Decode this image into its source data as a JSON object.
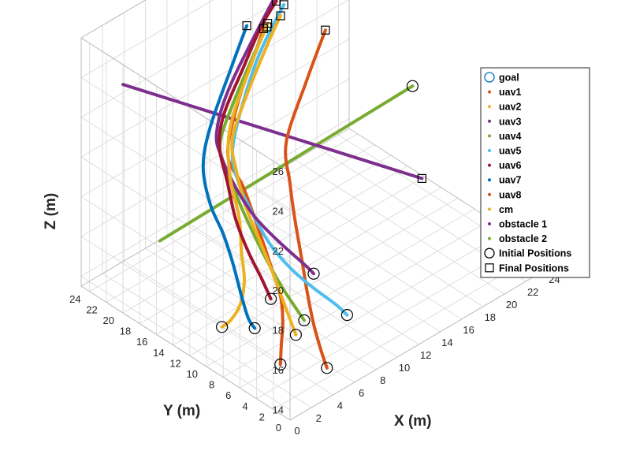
{
  "chart_data": {
    "type": "line",
    "projection": "3d",
    "xlabel": "X (m)",
    "ylabel": "Y (m)",
    "zlabel": "Z (m)",
    "xlim": [
      0,
      25
    ],
    "ylim": [
      0,
      25
    ],
    "zlim": [
      13.5,
      26
    ],
    "xticks": [
      "0",
      "2",
      "4",
      "6",
      "8",
      "10",
      "12",
      "14",
      "16",
      "18",
      "20",
      "22",
      "24"
    ],
    "yticks": [
      "0",
      "2",
      "4",
      "6",
      "8",
      "10",
      "12",
      "14",
      "16",
      "18",
      "20",
      "22",
      "24"
    ],
    "zticks": [
      "14",
      "16",
      "18",
      "20",
      "22",
      "24",
      "26"
    ],
    "grid": true,
    "legend_position": "top-right",
    "legend": [
      {
        "label": "goal",
        "marker": "circle",
        "color": "#0072BD"
      },
      {
        "label": "uav1",
        "marker": "dot",
        "color": "#D95319"
      },
      {
        "label": "uav2",
        "marker": "dot",
        "color": "#EDB120"
      },
      {
        "label": "uav3",
        "marker": "dot",
        "color": "#7E2F8E"
      },
      {
        "label": "uav4",
        "marker": "dot",
        "color": "#77AC30"
      },
      {
        "label": "uav5",
        "marker": "dot",
        "color": "#4DBEEE"
      },
      {
        "label": "uav6",
        "marker": "dot",
        "color": "#A2142F"
      },
      {
        "label": "uav7",
        "marker": "dot",
        "color": "#0072BD"
      },
      {
        "label": "uav8",
        "marker": "dot",
        "color": "#D95319"
      },
      {
        "label": "cm",
        "marker": "dot",
        "color": "#EDB120"
      },
      {
        "label": "obstacle 1",
        "marker": "dot",
        "color": "#7E2F8E"
      },
      {
        "label": "obstacle 2",
        "marker": "dot",
        "color": "#77AC30"
      },
      {
        "label": "Initial Positions",
        "marker": "circle",
        "color": "#000000"
      },
      {
        "label": "Final Positions",
        "marker": "square",
        "color": "#000000"
      }
    ],
    "series": [
      {
        "name": "uav1",
        "color": "#D95319",
        "points": [
          [
            3.0,
            5.0,
            14.0
          ],
          [
            3.4,
            5.4,
            14.8
          ],
          [
            4.0,
            6.0,
            15.5
          ],
          [
            4.6,
            7.0,
            16.3
          ],
          [
            4.8,
            8.2,
            17.2
          ],
          [
            5.0,
            10.0,
            18.6
          ],
          [
            5.0,
            12.0,
            20.4
          ],
          [
            5.5,
            14.5,
            21.2
          ],
          [
            9.0,
            17.8,
            21.8
          ],
          [
            13.0,
            21.0,
            22.0
          ],
          [
            15.3,
            22.8,
            22.2
          ]
        ]
      },
      {
        "name": "uav2",
        "color": "#EDB120",
        "points": [
          [
            3.0,
            12.0,
            14.0
          ],
          [
            3.2,
            11.2,
            14.5
          ],
          [
            3.6,
            10.6,
            15.3
          ],
          [
            4.0,
            10.6,
            16.4
          ],
          [
            4.2,
            11.2,
            17.6
          ],
          [
            4.6,
            12.0,
            19.0
          ],
          [
            4.8,
            13.4,
            20.8
          ],
          [
            6.5,
            15.5,
            22.0
          ],
          [
            11.5,
            19.5,
            22.4
          ],
          [
            15.3,
            22.3,
            22.6
          ]
        ]
      },
      {
        "name": "uav3",
        "color": "#7E2F8E",
        "points": [
          [
            10.0,
            10.0,
            15.0
          ],
          [
            9.5,
            10.5,
            15.5
          ],
          [
            8.0,
            11.5,
            16.8
          ],
          [
            6.6,
            12.6,
            18.2
          ],
          [
            5.6,
            13.6,
            19.7
          ],
          [
            5.0,
            14.6,
            21.2
          ],
          [
            5.0,
            15.2,
            22.3
          ],
          [
            8.0,
            17.5,
            23.0
          ],
          [
            16.0,
            23.0,
            23.0
          ],
          [
            19.0,
            24.8,
            23.0
          ]
        ]
      },
      {
        "name": "uav4",
        "color": "#77AC30",
        "points": [
          [
            6.0,
            6.0,
            15.0
          ],
          [
            5.8,
            6.8,
            15.5
          ],
          [
            5.4,
            8.0,
            16.4
          ],
          [
            5.0,
            9.6,
            17.7
          ],
          [
            4.8,
            11.6,
            19.2
          ],
          [
            4.8,
            13.6,
            20.7
          ],
          [
            5.0,
            14.8,
            21.8
          ],
          [
            8.0,
            17.0,
            22.4
          ],
          [
            13.0,
            20.6,
            22.6
          ],
          [
            15.0,
            22.0,
            22.6
          ]
        ]
      },
      {
        "name": "uav5",
        "color": "#4DBEEE",
        "points": [
          [
            10.0,
            6.0,
            14.0
          ],
          [
            9.5,
            6.8,
            14.5
          ],
          [
            8.3,
            7.8,
            15.4
          ],
          [
            7.0,
            8.8,
            16.5
          ],
          [
            6.0,
            10.0,
            17.7
          ],
          [
            5.4,
            11.2,
            19.0
          ],
          [
            5.0,
            12.6,
            20.5
          ],
          [
            6.0,
            14.5,
            21.6
          ],
          [
            12.0,
            19.5,
            22.4
          ],
          [
            17.5,
            23.2,
            22.6
          ]
        ]
      },
      {
        "name": "uav6",
        "color": "#A2142F",
        "points": [
          [
            6.0,
            10.0,
            15.0
          ],
          [
            5.6,
            10.6,
            16.0
          ],
          [
            5.0,
            11.4,
            17.3
          ],
          [
            4.6,
            12.4,
            18.8
          ],
          [
            4.6,
            13.4,
            20.4
          ],
          [
            4.8,
            14.6,
            21.8
          ],
          [
            6.0,
            15.6,
            22.8
          ],
          [
            10.0,
            18.5,
            23.0
          ],
          [
            14.0,
            21.5,
            23.0
          ],
          [
            16.8,
            23.2,
            23.0
          ]
        ]
      },
      {
        "name": "uav7",
        "color": "#0072BD",
        "points": [
          [
            4.5,
            10.0,
            14.0
          ],
          [
            4.2,
            10.4,
            14.5
          ],
          [
            4.0,
            11.0,
            15.6
          ],
          [
            3.8,
            11.7,
            17.0
          ],
          [
            3.5,
            12.5,
            18.4
          ],
          [
            3.0,
            13.4,
            19.8
          ],
          [
            3.2,
            14.5,
            21.3
          ],
          [
            5.0,
            16.0,
            22.3
          ],
          [
            10.0,
            19.8,
            22.8
          ],
          [
            13.5,
            22.5,
            23.0
          ]
        ]
      },
      {
        "name": "uav8",
        "color": "#D95319",
        "points": [
          [
            5.0,
            2.0,
            14.0
          ],
          [
            5.0,
            2.8,
            14.8
          ],
          [
            5.0,
            3.6,
            15.8
          ],
          [
            5.2,
            4.6,
            17.0
          ],
          [
            5.6,
            5.8,
            18.3
          ],
          [
            6.2,
            7.4,
            19.7
          ],
          [
            7.0,
            9.0,
            20.8
          ],
          [
            9.0,
            12.0,
            21.4
          ],
          [
            14.0,
            16.0,
            21.8
          ],
          [
            18.5,
            19.5,
            22.0
          ]
        ]
      },
      {
        "name": "cm",
        "color": "#EDB120",
        "points": [
          [
            6.0,
            7.0,
            14.0
          ],
          [
            5.8,
            8.0,
            15.2
          ],
          [
            5.6,
            9.2,
            16.6
          ],
          [
            5.4,
            10.6,
            18.0
          ],
          [
            5.2,
            12.0,
            19.4
          ],
          [
            5.4,
            13.4,
            20.8
          ],
          [
            6.0,
            14.6,
            21.8
          ],
          [
            9.0,
            16.8,
            22.4
          ],
          [
            14.0,
            20.5,
            22.6
          ],
          [
            16.5,
            22.3,
            22.6
          ]
        ]
      },
      {
        "name": "obstacle 1",
        "color": "#7E2F8E",
        "points": [
          [
            0.0,
            20.0,
            25.0
          ],
          [
            24.0,
            15.0,
            14.0
          ]
        ]
      },
      {
        "name": "obstacle 2",
        "color": "#77AC30",
        "points": [
          [
            5.0,
            22.0,
            15.0
          ],
          [
            20.0,
            11.0,
            21.0
          ]
        ]
      }
    ],
    "initial_positions": [
      [
        3.0,
        5.0,
        14.0
      ],
      [
        3.0,
        12.0,
        14.0
      ],
      [
        10.0,
        10.0,
        15.0
      ],
      [
        6.0,
        6.0,
        15.0
      ],
      [
        10.0,
        6.0,
        14.0
      ],
      [
        6.0,
        10.0,
        15.0
      ],
      [
        4.5,
        10.0,
        14.0
      ],
      [
        5.0,
        2.0,
        14.0
      ],
      [
        6.0,
        7.0,
        14.0
      ],
      [
        20.0,
        11.0,
        21.0
      ]
    ],
    "final_positions": [
      [
        15.3,
        22.8,
        22.2
      ],
      [
        15.3,
        22.3,
        22.6
      ],
      [
        19.0,
        24.8,
        23.0
      ],
      [
        15.0,
        22.0,
        22.6
      ],
      [
        17.5,
        23.2,
        22.6
      ],
      [
        16.8,
        23.2,
        23.0
      ],
      [
        13.5,
        22.5,
        23.0
      ],
      [
        18.5,
        19.5,
        22.0
      ],
      [
        16.5,
        22.3,
        22.6
      ],
      [
        24.0,
        15.0,
        14.0
      ]
    ]
  }
}
